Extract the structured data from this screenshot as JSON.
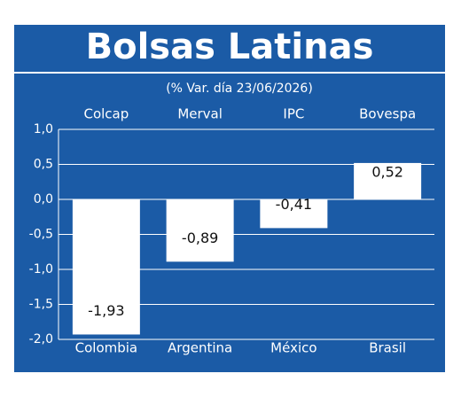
{
  "chart_data": {
    "type": "bar",
    "title": "Bolsas Latinas",
    "subtitle": "(% Var. día 23/06/2026)",
    "indices": [
      "Colcap",
      "Merval",
      "IPC",
      "Bovespa"
    ],
    "categories": [
      "Colombia",
      "Argentina",
      "México",
      "Brasil"
    ],
    "values": [
      -1.93,
      -0.89,
      -0.41,
      0.52
    ],
    "value_labels": [
      "-1,93",
      "-0,89",
      "-0,41",
      "0,52"
    ],
    "color": "#ffffff",
    "ylim": [
      -2.0,
      1.0
    ],
    "yticks": [
      {
        "value": 1.0,
        "label": "1,0"
      },
      {
        "value": 0.5,
        "label": "0,5"
      },
      {
        "value": 0.0,
        "label": "0,0"
      },
      {
        "value": -0.5,
        "label": "-0,5"
      },
      {
        "value": -1.0,
        "label": "-1,0"
      },
      {
        "value": -1.5,
        "label": "-1,5"
      },
      {
        "value": -2.0,
        "label": "-2,0"
      }
    ],
    "grid": true
  }
}
